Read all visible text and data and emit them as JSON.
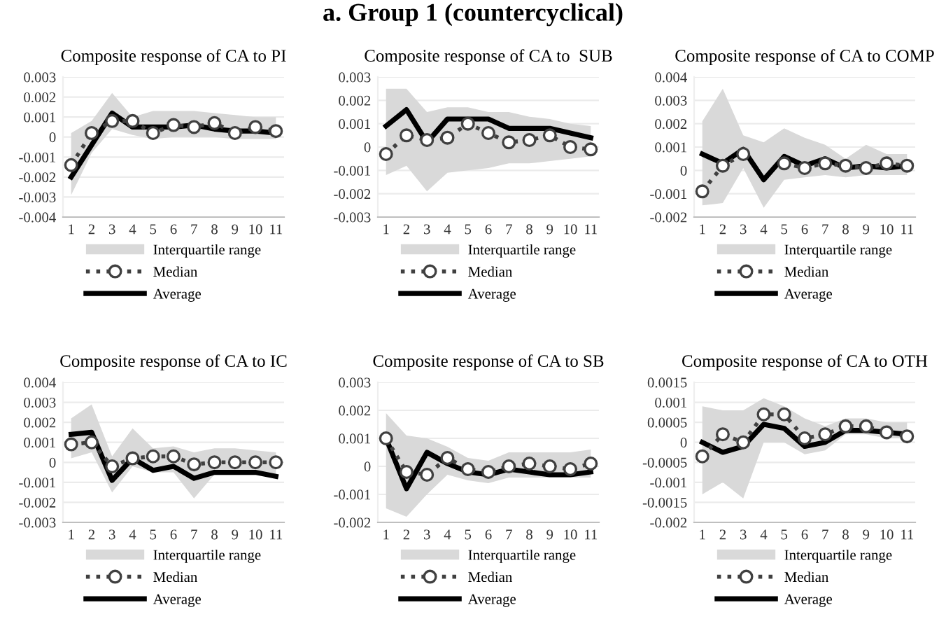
{
  "chart_data": [
    {
      "type": "other",
      "title": "a. Group 1 (countercyclical)"
    },
    {
      "type": "line",
      "title": "Composite response of CA to PI",
      "categories": [
        "1",
        "2",
        "3",
        "4",
        "5",
        "6",
        "7",
        "8",
        "9",
        "10",
        "11"
      ],
      "ylim": [
        -0.004,
        0.003
      ],
      "yticks": [
        -0.004,
        -0.003,
        -0.002,
        -0.001,
        0,
        0.001,
        0.002,
        0.003
      ],
      "grid": "y",
      "legend": "bottom",
      "series": [
        {
          "name": "Interquartile range",
          "type": "line",
          "color": "#d9d9d9",
          "values": [
            null,
            null,
            null,
            null,
            null,
            null,
            null,
            null,
            null,
            null,
            null
          ],
          "lower": [
            -0.0029,
            -0.0008,
            0.0004,
            0.0001,
            -0.0001,
            0.0,
            0.0,
            0.0,
            -0.0001,
            -0.0001,
            -0.0001
          ],
          "upper": [
            0.0002,
            0.0008,
            0.0022,
            0.001,
            0.0013,
            0.0013,
            0.0013,
            0.0012,
            0.0011,
            0.001,
            0.001
          ]
        },
        {
          "name": "Median",
          "type": "line",
          "color": "#404040",
          "line_style": "dotted",
          "marker": "circle",
          "values": [
            -0.0014,
            0.0002,
            0.0008,
            0.0008,
            0.0002,
            0.0006,
            0.0005,
            0.0007,
            0.0002,
            0.0005,
            0.0003
          ]
        },
        {
          "name": "Average",
          "type": "line",
          "color": "#000000",
          "line_style": "solid",
          "marker": "none",
          "values": [
            -0.002,
            -0.0004,
            0.0012,
            0.0005,
            0.0005,
            0.0005,
            0.0006,
            0.0004,
            0.0003,
            0.0003,
            0.0002
          ]
        }
      ]
    },
    {
      "type": "line",
      "title": "Composite response of CA to  SUB",
      "categories": [
        "1",
        "2",
        "3",
        "4",
        "5",
        "6",
        "7",
        "8",
        "9",
        "10",
        "11"
      ],
      "ylim": [
        -0.003,
        0.003
      ],
      "yticks": [
        -0.003,
        -0.002,
        -0.001,
        0,
        0.001,
        0.002,
        0.003
      ],
      "grid": "y",
      "legend": "bottom",
      "series": [
        {
          "name": "Interquartile range",
          "type": "line",
          "color": "#d9d9d9",
          "values": [
            null,
            null,
            null,
            null,
            null,
            null,
            null,
            null,
            null,
            null,
            null
          ],
          "lower": [
            -0.0012,
            -0.0008,
            -0.0019,
            -0.0011,
            -0.001,
            -0.0009,
            -0.0007,
            -0.0007,
            -0.0006,
            -0.0005,
            -0.0004
          ],
          "upper": [
            0.0025,
            0.0025,
            0.0015,
            0.0017,
            0.0017,
            0.0015,
            0.0015,
            0.0013,
            0.0012,
            0.001,
            0.0009
          ]
        },
        {
          "name": "Median",
          "type": "line",
          "color": "#404040",
          "line_style": "dotted",
          "marker": "circle",
          "values": [
            -0.0003,
            0.0005,
            0.0003,
            0.0004,
            0.001,
            0.0006,
            0.0002,
            0.0003,
            0.0005,
            0.0,
            -0.0001
          ]
        },
        {
          "name": "Average",
          "type": "line",
          "color": "#000000",
          "line_style": "solid",
          "marker": "none",
          "values": [
            0.0009,
            0.0016,
            0.0002,
            0.0012,
            0.0012,
            0.0012,
            0.0008,
            0.0008,
            0.0008,
            0.0006,
            0.0004
          ]
        }
      ]
    },
    {
      "type": "line",
      "title": "Composite response of CA to COMP",
      "categories": [
        "1",
        "2",
        "3",
        "4",
        "5",
        "6",
        "7",
        "8",
        "9",
        "10",
        "11"
      ],
      "ylim": [
        -0.002,
        0.004
      ],
      "yticks": [
        -0.002,
        -0.001,
        0,
        0.001,
        0.002,
        0.003,
        0.004
      ],
      "grid": "y",
      "legend": "bottom",
      "series": [
        {
          "name": "Interquartile range",
          "type": "line",
          "color": "#d9d9d9",
          "values": [
            null,
            null,
            null,
            null,
            null,
            null,
            null,
            null,
            null,
            null,
            null
          ],
          "lower": [
            -0.0015,
            -0.0014,
            0.0001,
            -0.0016,
            -0.0004,
            -0.0003,
            -0.0002,
            -0.0003,
            -0.0002,
            -0.0002,
            -0.0002
          ],
          "upper": [
            0.0021,
            0.0035,
            0.0015,
            0.0012,
            0.0018,
            0.0014,
            0.0011,
            0.0005,
            0.0011,
            0.0007,
            0.0007
          ]
        },
        {
          "name": "Median",
          "type": "line",
          "color": "#404040",
          "line_style": "dotted",
          "marker": "circle",
          "values": [
            -0.0009,
            0.0002,
            0.0007,
            null,
            0.0003,
            0.0001,
            0.0003,
            0.0002,
            0.0001,
            0.0003,
            0.0002
          ]
        },
        {
          "name": "Average",
          "type": "line",
          "color": "#000000",
          "line_style": "solid",
          "marker": "none",
          "values": [
            0.0007,
            0.0003,
            0.0009,
            -0.0004,
            0.0006,
            0.0002,
            0.0005,
            0.0001,
            0.0002,
            0.0001,
            0.0002
          ]
        }
      ]
    },
    {
      "type": "line",
      "title": "Composite response of CA to IC",
      "categories": [
        "1",
        "2",
        "3",
        "4",
        "5",
        "6",
        "7",
        "8",
        "9",
        "10",
        "11"
      ],
      "ylim": [
        -0.003,
        0.004
      ],
      "yticks": [
        -0.003,
        -0.002,
        -0.001,
        0,
        0.001,
        0.002,
        0.003,
        0.004
      ],
      "grid": "y",
      "legend": "bottom",
      "series": [
        {
          "name": "Interquartile range",
          "type": "line",
          "color": "#d9d9d9",
          "values": [
            null,
            null,
            null,
            null,
            null,
            null,
            null,
            null,
            null,
            null,
            null
          ],
          "lower": [
            0.0002,
            0.0005,
            -0.0015,
            -0.0002,
            -0.0005,
            -0.0005,
            -0.0018,
            -0.0006,
            -0.0006,
            -0.0006,
            -0.0007
          ],
          "upper": [
            0.0022,
            0.0029,
            0.0003,
            0.0017,
            0.0007,
            0.0008,
            0.0005,
            0.0007,
            0.0007,
            0.0006,
            0.0005
          ]
        },
        {
          "name": "Median",
          "type": "line",
          "color": "#404040",
          "line_style": "dotted",
          "marker": "circle",
          "values": [
            0.0009,
            0.001,
            -0.0002,
            0.0002,
            0.0003,
            0.0003,
            -0.0001,
            0.0,
            0.0,
            0.0,
            0.0
          ]
        },
        {
          "name": "Average",
          "type": "line",
          "color": "#000000",
          "line_style": "solid",
          "marker": "none",
          "values": [
            0.0014,
            0.0015,
            -0.0009,
            0.0002,
            -0.0004,
            -0.0002,
            -0.0008,
            -0.0005,
            -0.0005,
            -0.0005,
            -0.0007
          ]
        }
      ]
    },
    {
      "type": "line",
      "title": "Composite response of CA to SB",
      "categories": [
        "1",
        "2",
        "3",
        "4",
        "5",
        "6",
        "7",
        "8",
        "9",
        "10",
        "11"
      ],
      "ylim": [
        -0.002,
        0.003
      ],
      "yticks": [
        -0.002,
        -0.001,
        0,
        0.001,
        0.002,
        0.003
      ],
      "grid": "y",
      "legend": "bottom",
      "series": [
        {
          "name": "Interquartile range",
          "type": "line",
          "color": "#d9d9d9",
          "values": [
            null,
            null,
            null,
            null,
            null,
            null,
            null,
            null,
            null,
            null,
            null
          ],
          "lower": [
            -0.0015,
            -0.0018,
            -0.001,
            -0.0003,
            -0.0005,
            -0.0006,
            -0.0004,
            -0.0004,
            -0.0004,
            -0.0004,
            -0.0004
          ],
          "upper": [
            0.0019,
            0.0011,
            0.001,
            0.0007,
            0.0003,
            0.0002,
            0.0005,
            0.0005,
            0.0005,
            0.0005,
            0.0006
          ]
        },
        {
          "name": "Median",
          "type": "line",
          "color": "#404040",
          "line_style": "dotted",
          "marker": "circle",
          "values": [
            0.001,
            -0.0002,
            -0.0003,
            0.0003,
            -0.0001,
            -0.0002,
            0.0,
            0.0001,
            0.0,
            -0.0001,
            0.0001
          ]
        },
        {
          "name": "Average",
          "type": "line",
          "color": "#000000",
          "line_style": "solid",
          "marker": "none",
          "values": [
            0.001,
            -0.0008,
            0.0005,
            0.0001,
            -0.0002,
            -0.0003,
            -0.0001,
            -0.0002,
            -0.0003,
            -0.0003,
            -0.0002
          ]
        }
      ]
    },
    {
      "type": "line",
      "title": "Composite response of CA to OTH",
      "categories": [
        "1",
        "2",
        "3",
        "4",
        "5",
        "6",
        "7",
        "8",
        "9",
        "10",
        "11"
      ],
      "ylim": [
        -0.002,
        0.0015
      ],
      "yticks": [
        -0.002,
        -0.0015,
        -0.001,
        -0.0005,
        0,
        0.0005,
        0.001,
        0.0015
      ],
      "grid": "y",
      "legend": "bottom",
      "series": [
        {
          "name": "Interquartile range",
          "type": "line",
          "color": "#d9d9d9",
          "values": [
            null,
            null,
            null,
            null,
            null,
            null,
            null,
            null,
            null,
            null,
            null
          ],
          "lower": [
            -0.0013,
            -0.001,
            -0.0014,
            0.0,
            0.0,
            -0.0003,
            -0.0002,
            0.0002,
            0.0002,
            0.0001,
            0.0001
          ],
          "upper": [
            0.0009,
            0.0008,
            0.0008,
            0.0011,
            0.0009,
            0.0006,
            0.0004,
            0.0006,
            0.0006,
            0.0005,
            0.0005
          ]
        },
        {
          "name": "Median",
          "type": "line",
          "color": "#404040",
          "line_style": "dotted",
          "marker": "circle",
          "values": [
            -0.00035,
            0.0002,
            0.0,
            0.0007,
            0.0007,
            0.0001,
            0.0002,
            0.0004,
            0.0004,
            0.00025,
            0.00015
          ]
        },
        {
          "name": "Average",
          "type": "line",
          "color": "#000000",
          "line_style": "solid",
          "marker": "none",
          "values": [
            0.0,
            -0.00025,
            -0.0001,
            0.00045,
            0.00035,
            -0.0001,
            0.0,
            0.0003,
            0.0003,
            0.00025,
            0.0002
          ]
        }
      ]
    }
  ]
}
